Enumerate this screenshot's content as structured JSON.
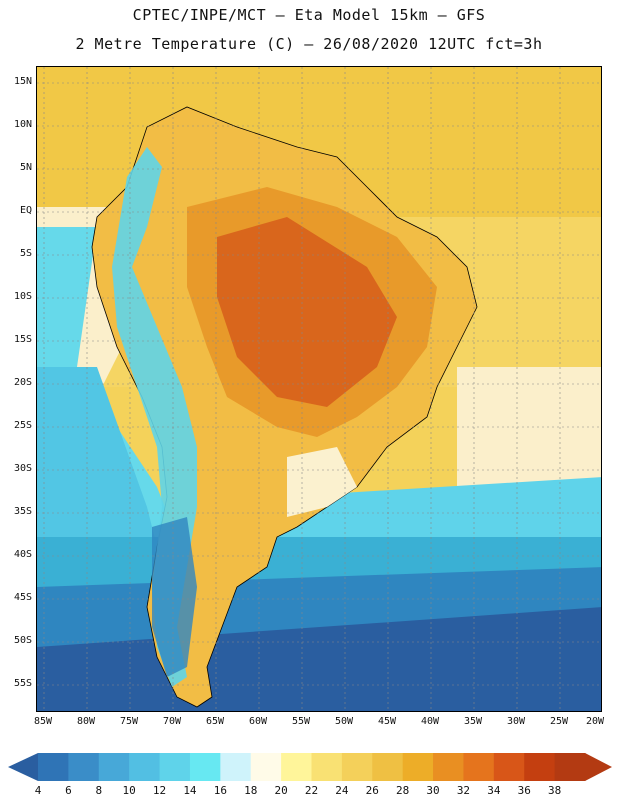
{
  "header": {
    "line1": "CPTEC/INPE/MCT –  Eta Model 15km – GFS",
    "line2": "2 Metre Temperature (C) – 26/08/2020 12UTC fct=3h"
  },
  "map": {
    "lat_labels": [
      "15N",
      "10N",
      "5N",
      "EQ",
      "5S",
      "10S",
      "15S",
      "20S",
      "25S",
      "30S",
      "35S",
      "40S",
      "45S",
      "50S",
      "55S"
    ],
    "lon_labels": [
      "85W",
      "80W",
      "75W",
      "70W",
      "65W",
      "60W",
      "55W",
      "50W",
      "45W",
      "40W",
      "35W",
      "30W",
      "25W",
      "20W"
    ],
    "colors": {
      "ocean_warm": "#f2cc4a",
      "ocean_mid": "#f6dc6a",
      "ocean_cool_pale": "#fbf1cf",
      "ocean_cyan": "#66d9ea",
      "ocean_teal": "#3ab6d6",
      "ocean_blue": "#2f86c0",
      "ocean_deep": "#235f9e",
      "land_hot": "#d9661c",
      "land_warm": "#e89a2a",
      "land_mild": "#f2bd45",
      "andes": "#5fd4e8"
    }
  },
  "colorbar": {
    "levels": [
      "4",
      "6",
      "8",
      "10",
      "12",
      "14",
      "16",
      "18",
      "20",
      "22",
      "24",
      "26",
      "28",
      "30",
      "32",
      "34",
      "36",
      "38"
    ],
    "colors": [
      "#2a5ea0",
      "#2f74b6",
      "#3a8dc8",
      "#47a8d8",
      "#52bfe3",
      "#5fd3ea",
      "#67e8f2",
      "#cff3fb",
      "#fffbe8",
      "#fff59a",
      "#f9e173",
      "#f4d05a",
      "#efc043",
      "#edad28",
      "#e98f22",
      "#e5741d",
      "#d85618",
      "#c43f10",
      "#b33a12"
    ]
  }
}
